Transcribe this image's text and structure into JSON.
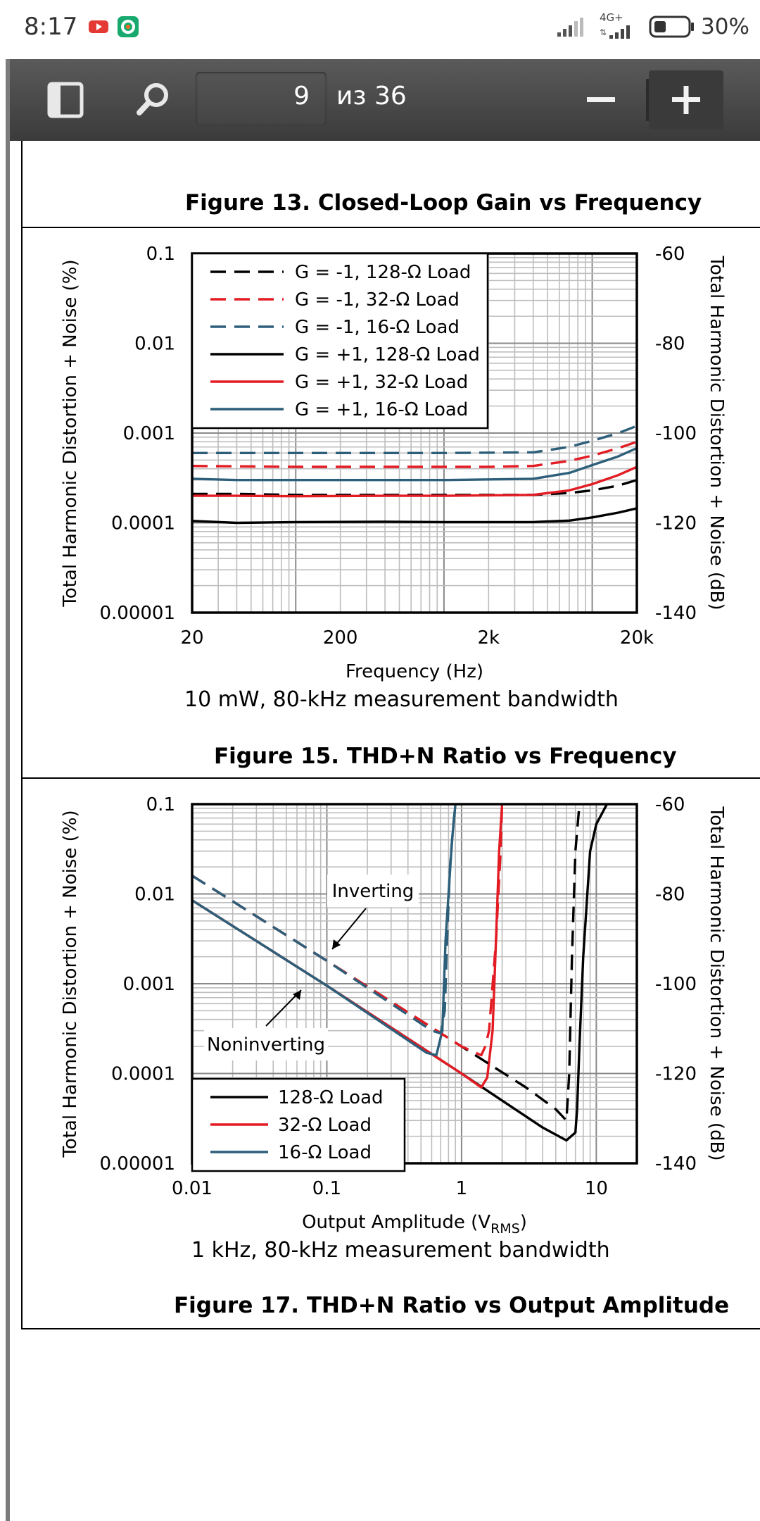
{
  "status_bar": {
    "time": "8:17",
    "network": "4G+",
    "battery": "30%",
    "icons": [
      "youtube-icon",
      "app-icon",
      "signal-icon",
      "battery-icon"
    ]
  },
  "toolbar": {
    "sidebar_icon": "sidebar-icon",
    "search_icon": "search-icon",
    "page_number": "9",
    "page_of": "из 36",
    "zoom_out": "−",
    "zoom_in": "+"
  },
  "captions": {
    "fig13": "Figure 13. Closed-Loop Gain vs Frequency",
    "fig15": "Figure 15. THD+N Ratio vs Frequency",
    "fig17": "Figure 17. THD+N Ratio vs Output Amplitude"
  },
  "chart_data": [
    {
      "type": "line",
      "title": "Figure 15. THD+N Ratio vs Frequency",
      "xlabel": "Frequency (Hz)",
      "ylabel": "Total Harmonic Distortion + Noise (%)",
      "y2label": "Total Harmonic Distortion + Noise (dB)",
      "note": "10 mW, 80-kHz measurement bandwidth",
      "xscale": "log",
      "yscale": "log",
      "xlim": [
        20,
        20000
      ],
      "ylim": [
        1e-05,
        0.1
      ],
      "y2lim": [
        -140,
        -60
      ],
      "xticks": [
        "20",
        "200",
        "2k",
        "20k"
      ],
      "yticks": [
        "0.1",
        "0.01",
        "0.001",
        "0.0001",
        "0.00001"
      ],
      "y2ticks": [
        "-60",
        "-80",
        "-100",
        "-120",
        "-140"
      ],
      "legend_position": "top-left",
      "series": [
        {
          "name": "G = -1, 128-Ω Load",
          "color": "#000000",
          "dash": true,
          "x": [
            20,
            40,
            100,
            400,
            1000,
            4000,
            7000,
            10000,
            15000,
            20000
          ],
          "y": [
            0.00021,
            0.00021,
            0.000205,
            0.000205,
            0.000205,
            0.000205,
            0.000215,
            0.00023,
            0.00026,
            0.0003
          ]
        },
        {
          "name": "G = -1, 32-Ω Load",
          "color": "#e31b23",
          "dash": true,
          "x": [
            20,
            100,
            400,
            1000,
            2000,
            4000,
            7000,
            10000,
            15000,
            20000
          ],
          "y": [
            0.00043,
            0.00042,
            0.00042,
            0.00042,
            0.00042,
            0.00043,
            0.00049,
            0.00056,
            0.00068,
            0.0008
          ]
        },
        {
          "name": "G = -1, 16-Ω Load",
          "color": "#2d5f7a",
          "dash": true,
          "x": [
            20,
            100,
            400,
            1000,
            4000,
            7000,
            10000,
            15000,
            20000
          ],
          "y": [
            0.0006,
            0.0006,
            0.0006,
            0.0006,
            0.00061,
            0.0007,
            0.00082,
            0.001,
            0.0012
          ]
        },
        {
          "name": "G = +1, 128-Ω Load",
          "color": "#000000",
          "dash": false,
          "x": [
            20,
            40,
            100,
            400,
            1000,
            4000,
            7000,
            10000,
            15000,
            20000
          ],
          "y": [
            0.000105,
            0.0001,
            0.000102,
            0.000103,
            0.000102,
            0.000102,
            0.000106,
            0.000115,
            0.00013,
            0.000145
          ]
        },
        {
          "name": "G = +1, 32-Ω Load",
          "color": "#e31b23",
          "dash": false,
          "x": [
            20,
            40,
            100,
            400,
            1000,
            4000,
            7000,
            10000,
            15000,
            20000
          ],
          "y": [
            0.0002,
            0.0002,
            0.000198,
            0.0002,
            0.0002,
            0.000205,
            0.00023,
            0.00027,
            0.00034,
            0.00042
          ]
        },
        {
          "name": "G = +1, 16-Ω Load",
          "color": "#2d5f7a",
          "dash": false,
          "x": [
            20,
            40,
            100,
            400,
            1000,
            4000,
            7000,
            10000,
            15000,
            20000
          ],
          "y": [
            0.00031,
            0.0003,
            0.0003,
            0.0003,
            0.0003,
            0.00031,
            0.00036,
            0.00044,
            0.00055,
            0.00068
          ]
        }
      ]
    },
    {
      "type": "line",
      "title": "Figure 17. THD+N Ratio vs Output Amplitude",
      "xlabel": "Output Amplitude (V",
      "xlabel_sub": "RMS",
      "xlabel_end": ")",
      "ylabel": "Total Harmonic Distortion + Noise (%)",
      "y2label": "Total Harmonic Distortion + Noise (dB)",
      "note": "1 kHz, 80-kHz measurement bandwidth",
      "xscale": "log",
      "yscale": "log",
      "xlim": [
        0.01,
        20
      ],
      "ylim": [
        1e-05,
        0.1
      ],
      "y2lim": [
        -140,
        -60
      ],
      "xticks": [
        "0.01",
        "0.1",
        "1",
        "10"
      ],
      "yticks": [
        "0.1",
        "0.01",
        "0.001",
        "0.0001",
        "0.00001"
      ],
      "y2ticks": [
        "-60",
        "-80",
        "-100",
        "-120",
        "-140"
      ],
      "legend_position": "bottom-left",
      "annotations": [
        "Inverting",
        "Noninverting"
      ],
      "series": [
        {
          "name": "128-Ω Load",
          "color": "#000000",
          "dash": false,
          "x": [
            0.01,
            0.1,
            1,
            2,
            4,
            6,
            7,
            7.2,
            7.5,
            8,
            9,
            10,
            12
          ],
          "y": [
            0.0085,
            0.00095,
            0.0001,
            5e-05,
            2.5e-05,
            1.8e-05,
            2.2e-05,
            4e-05,
            0.0002,
            0.002,
            0.03,
            0.06,
            0.1
          ]
        },
        {
          "name": "32-Ω Load",
          "color": "#e31b23",
          "dash": false,
          "x": [
            0.01,
            0.1,
            1,
            1.4,
            1.55,
            1.7,
            1.8,
            1.9,
            2.0
          ],
          "y": [
            0.0085,
            0.00095,
            0.0001,
            7e-05,
            9e-05,
            0.0003,
            0.003,
            0.03,
            0.1
          ]
        },
        {
          "name": "16-Ω Load",
          "color": "#2d5f7a",
          "dash": false,
          "x": [
            0.01,
            0.1,
            0.55,
            0.65,
            0.72,
            0.76,
            0.8,
            0.85,
            0.9
          ],
          "y": [
            0.0085,
            0.00095,
            0.00017,
            0.00016,
            0.0003,
            0.003,
            0.01,
            0.04,
            0.1
          ]
        },
        {
          "name": "",
          "color": "#000000",
          "dash": true,
          "x": [
            0.01,
            0.1,
            1,
            3,
            5,
            6,
            6.3,
            6.6,
            7,
            7.5
          ],
          "y": [
            0.016,
            0.0018,
            0.0002,
            7e-05,
            4e-05,
            3e-05,
            0.0001,
            0.002,
            0.03,
            0.1
          ]
        },
        {
          "name": "",
          "color": "#e31b23",
          "dash": true,
          "x": [
            0.01,
            0.1,
            1,
            1.4,
            1.5,
            1.6,
            1.8,
            1.95,
            2.0
          ],
          "y": [
            0.016,
            0.0018,
            0.0002,
            0.00016,
            0.0002,
            0.0003,
            0.003,
            0.03,
            0.1
          ]
        },
        {
          "name": "",
          "color": "#2d5f7a",
          "dash": true,
          "x": [
            0.01,
            0.1,
            0.6,
            0.7,
            0.75,
            0.78,
            0.82,
            0.87,
            0.9
          ],
          "y": [
            0.016,
            0.0018,
            0.0003,
            0.00028,
            0.0005,
            0.003,
            0.02,
            0.06,
            0.1
          ]
        }
      ]
    }
  ]
}
